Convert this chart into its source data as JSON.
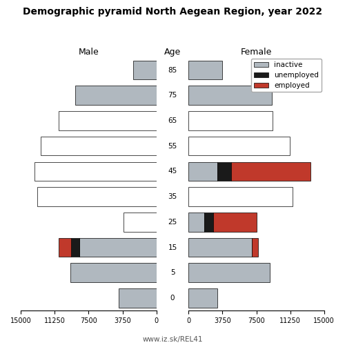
{
  "title": "Demographic pyramid North Aegean Region, year 2022",
  "age_groups": [
    85,
    75,
    65,
    55,
    45,
    35,
    25,
    15,
    5,
    0
  ],
  "male_inactive": [
    2600,
    9000,
    0,
    0,
    0,
    0,
    0,
    8500,
    9500,
    4200
  ],
  "male_unemployed": [
    0,
    0,
    0,
    0,
    0,
    0,
    0,
    950,
    0,
    0
  ],
  "male_employed": [
    0,
    0,
    10800,
    12800,
    13500,
    13200,
    3600,
    1400,
    0,
    0
  ],
  "male_employed_white": [
    false,
    false,
    true,
    true,
    true,
    true,
    true,
    false,
    false,
    false
  ],
  "female_inactive": [
    3700,
    9200,
    0,
    0,
    3200,
    0,
    1700,
    7000,
    9000,
    3200
  ],
  "female_unemployed": [
    0,
    0,
    0,
    0,
    1500,
    0,
    1000,
    0,
    0,
    0
  ],
  "female_employed": [
    0,
    0,
    9300,
    11200,
    8800,
    11500,
    4800,
    700,
    0,
    0
  ],
  "female_employed_white": [
    false,
    false,
    true,
    true,
    false,
    true,
    false,
    false,
    false,
    false
  ],
  "color_inactive": "#b0b8bf",
  "color_unemployed": "#1a1a1a",
  "color_employed": "#c0392b",
  "color_employed_white": "#ffffff",
  "xlim": 15000,
  "xticks": [
    0,
    3750,
    7500,
    11250,
    15000
  ],
  "title_str": "Demographic pyramid North Aegean Region, year 2022",
  "label_male": "Male",
  "label_female": "Female",
  "label_age": "Age",
  "footer": "www.iz.sk/REL41",
  "bar_height": 0.75
}
